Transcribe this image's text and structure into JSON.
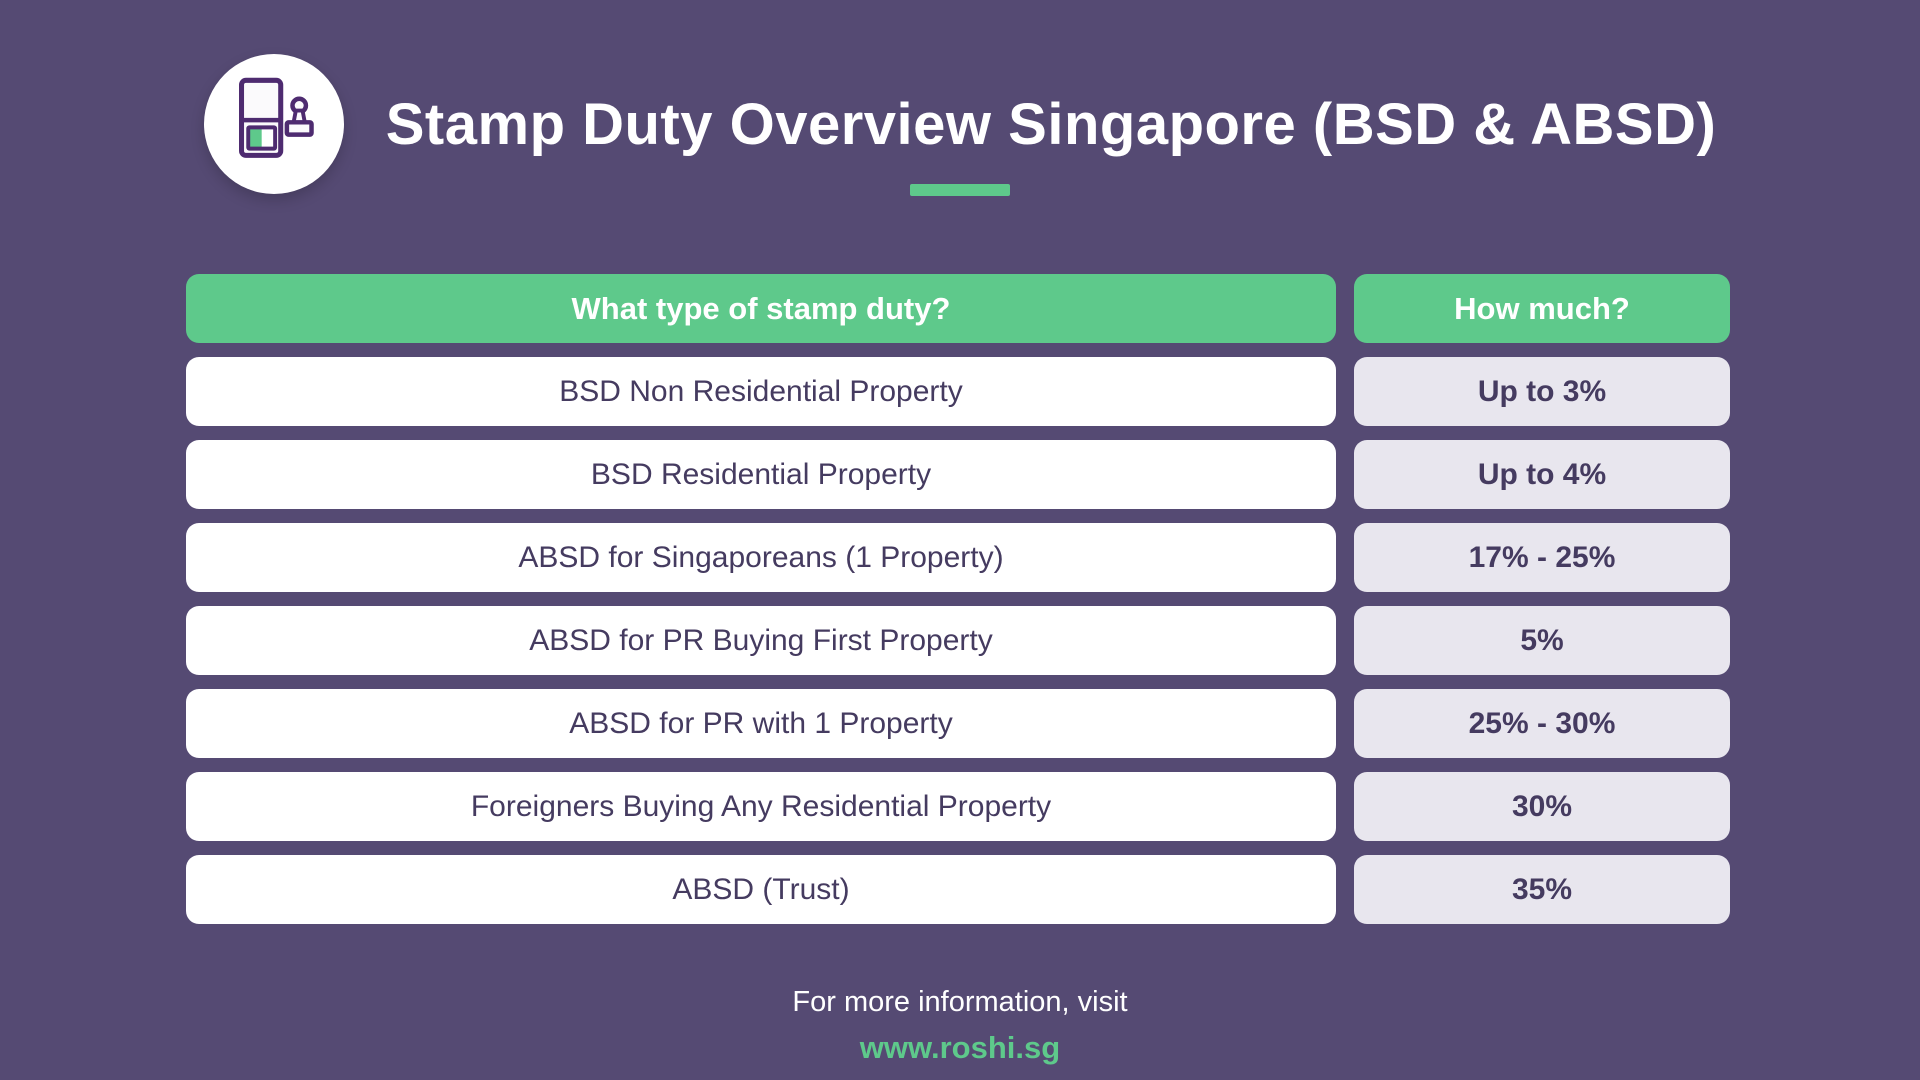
{
  "theme": {
    "background": "#554a73",
    "accent_green": "#5ec98b",
    "title_text": "#ffffff",
    "cell_text": "#453b60",
    "type_cell_bg": "#ffffff",
    "amount_cell_bg": "#e8e6ee",
    "icon_outline": "#4e2b70",
    "icon_circle_bg": "#ffffff"
  },
  "header": {
    "icon": "stamp-document-icon",
    "title": "Stamp Duty Overview Singapore (BSD & ABSD)"
  },
  "chart_data": {
    "type": "table",
    "title": "Stamp Duty Overview Singapore (BSD & ABSD)",
    "columns": [
      "What type of stamp duty?",
      "How much?"
    ],
    "rows": [
      [
        "BSD Non Residential Property",
        "Up to 3%"
      ],
      [
        "BSD Residential Property",
        "Up to 4%"
      ],
      [
        "ABSD for Singaporeans (1 Property)",
        "17% - 25%"
      ],
      [
        "ABSD for PR Buying First Property",
        "5%"
      ],
      [
        "ABSD for PR with 1 Property",
        "25% - 30%"
      ],
      [
        "Foreigners Buying Any Residential Property",
        "30%"
      ],
      [
        "ABSD (Trust)",
        "35%"
      ]
    ]
  },
  "footer": {
    "note": "For more information, visit",
    "url": "www.roshi.sg"
  }
}
